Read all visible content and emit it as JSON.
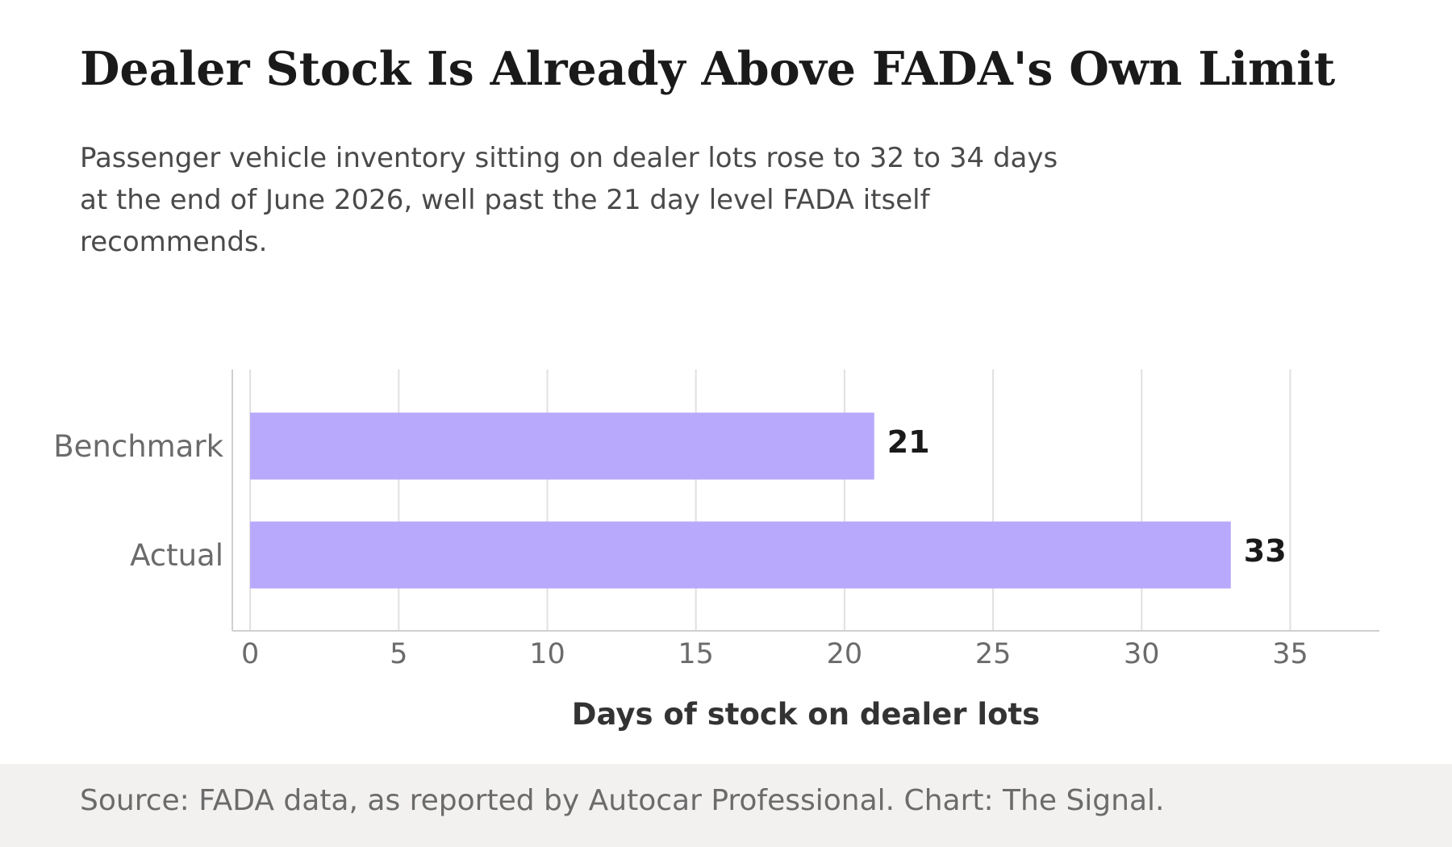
{
  "title": "Dealer Stock Is Already Above FADA's Own Limit",
  "subtitle": "Passenger vehicle inventory sitting on dealer lots rose to 32 to 34 days at the end of June 2026, well past the 21 day level FADA itself recommends.",
  "source": "Source: FADA data, as reported by Autocar Professional. Chart: The Signal.",
  "colors": {
    "bar": "#b8a9fd",
    "grid": "#e0e0e0",
    "axis": "#d0d0d0",
    "tick_text": "#6b6b6b",
    "value_text": "#1a1a1a",
    "xlabel_text": "#333333",
    "footer_bg": "#f2f1f0"
  },
  "chart_data": {
    "type": "bar",
    "orientation": "horizontal",
    "categories": [
      "Benchmark",
      "Actual"
    ],
    "values": [
      21,
      33
    ],
    "data_labels": [
      "21",
      "33"
    ],
    "xlabel": "Days of stock on dealer lots",
    "ylabel": "",
    "xlim": [
      -0.6,
      38
    ],
    "xticks": [
      0,
      5,
      10,
      15,
      20,
      25,
      30,
      35
    ],
    "grid": "vertical",
    "legend": "none"
  }
}
